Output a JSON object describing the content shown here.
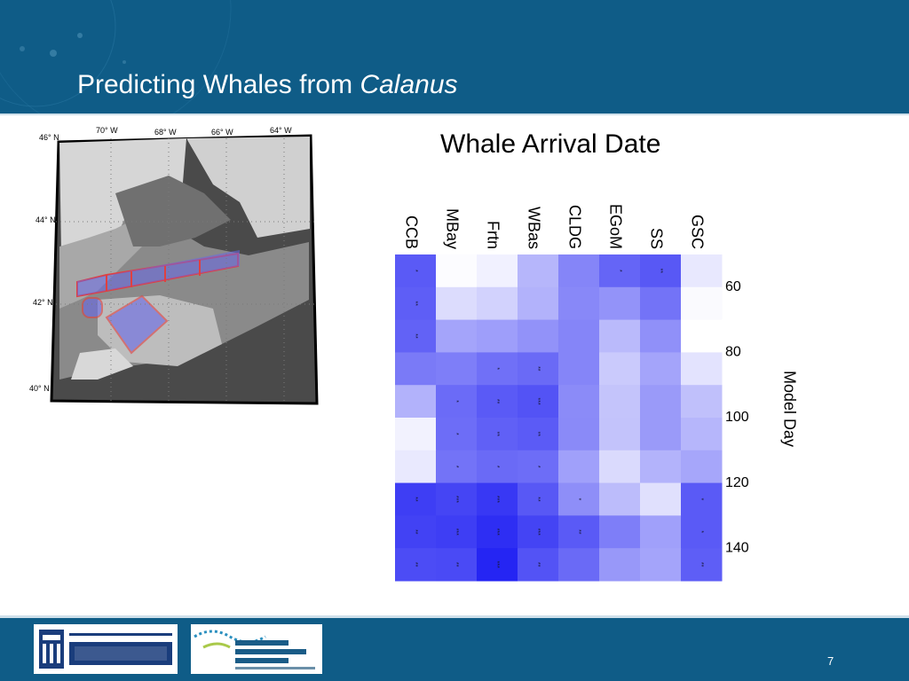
{
  "slide": {
    "title": "Predicting Whales from",
    "title_italic": "Calanus",
    "page_number": "7",
    "colors": {
      "header": "#0f5c87",
      "footer": "#0f5c87"
    }
  },
  "map": {
    "lat_labels": [
      "46° N",
      "44° N",
      "42° N",
      "40° N"
    ],
    "lon_labels": [
      "70° W",
      "68° W",
      "66° W",
      "64° W"
    ]
  },
  "chart_data": {
    "type": "heatmap",
    "title": "Whale Arrival Date",
    "xlabel": "",
    "ylabel": "Model Day",
    "columns": [
      "CCB",
      "MBay",
      "Frtn",
      "WBas",
      "CLDG",
      "EGoM",
      "SS",
      "GSC"
    ],
    "y_ticks": [
      60,
      80,
      100,
      120,
      140
    ],
    "ylim": [
      50,
      150
    ],
    "rows": 10,
    "cell_colors": [
      [
        "#5a5af6",
        "#fcfcff",
        "#f1f1ff",
        "#b6b6fb",
        "#8585f8",
        "#6565f6",
        "#5858f5",
        "#e8e8fe"
      ],
      [
        "#5e5ef6",
        "#dcdcfd",
        "#d2d2fd",
        "#b2b2fb",
        "#8888f8",
        "#9393f9",
        "#7373f7",
        "#fafafe"
      ],
      [
        "#6262f6",
        "#a4a4fa",
        "#9e9efa",
        "#9292f9",
        "#8585f8",
        "#babafb",
        "#9090f9",
        "#ffffff"
      ],
      [
        "#7a7af7",
        "#7e7ef8",
        "#7070f7",
        "#6a6af6",
        "#8585f8",
        "#cacafc",
        "#a4a4fa",
        "#e3e3fe"
      ],
      [
        "#b2b2fb",
        "#6b6bf7",
        "#5a5af6",
        "#5353f5",
        "#8b8bf8",
        "#c4c4fb",
        "#9a9af9",
        "#c0c0fb"
      ],
      [
        "#f2f2fe",
        "#6d6df7",
        "#6060f6",
        "#5b5bf6",
        "#8a8af8",
        "#c3c3fb",
        "#9a9af9",
        "#b6b6fb"
      ],
      [
        "#e9e9fe",
        "#7373f7",
        "#6a6af6",
        "#6d6df7",
        "#a0a0fa",
        "#dadafd",
        "#b3b3fb",
        "#a6a6fa"
      ],
      [
        "#3e3ef4",
        "#4545f4",
        "#3838f4",
        "#5858f5",
        "#8e8ef8",
        "#bcbcfb",
        "#e0e0fd",
        "#5a5af6"
      ],
      [
        "#4242f4",
        "#3e3ef4",
        "#2e2ef3",
        "#4444f4",
        "#5a5af6",
        "#7e7ef8",
        "#a0a0fa",
        "#5a5af6"
      ],
      [
        "#4c4cf5",
        "#4a4af5",
        "#2525f3",
        "#5353f5",
        "#6a6af6",
        "#9898f9",
        "#a4a4fa",
        "#5e5ef6"
      ]
    ],
    "significance_marks": [
      [
        "*",
        "",
        "",
        "",
        "",
        "*",
        "**",
        ""
      ],
      [
        "**",
        "",
        "",
        "",
        "",
        "",
        "",
        ""
      ],
      [
        "**",
        "",
        "",
        "",
        "",
        "",
        "",
        ""
      ],
      [
        "",
        "",
        "*",
        "**",
        "",
        "",
        "",
        ""
      ],
      [
        "",
        "*",
        "**",
        "***",
        "",
        "",
        "",
        ""
      ],
      [
        "",
        "*",
        "**",
        "**",
        "",
        "",
        "",
        ""
      ],
      [
        "",
        "*",
        "*",
        "*",
        "",
        "",
        "",
        ""
      ],
      [
        "**",
        "***",
        "***",
        "**",
        "*",
        "",
        "",
        "*"
      ],
      [
        "**",
        "***",
        "***",
        "***",
        "**",
        "",
        "",
        "*"
      ],
      [
        "**",
        "**",
        "***",
        "**",
        "",
        "",
        "",
        "**"
      ]
    ],
    "grid": false
  }
}
